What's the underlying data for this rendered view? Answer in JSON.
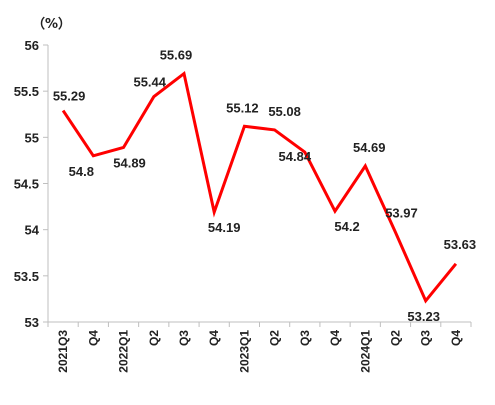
{
  "chart_data": {
    "type": "line",
    "title": "",
    "xlabel": "",
    "ylabel": "",
    "unit": "（%）",
    "categories": [
      "2021Q3",
      "Q4",
      "2022Q1",
      "Q2",
      "Q3",
      "Q4",
      "2023Q1",
      "Q2",
      "Q3",
      "Q4",
      "2024Q1",
      "Q2",
      "Q3",
      "Q4"
    ],
    "series": [
      {
        "values": [
          55.29,
          54.8,
          54.89,
          55.44,
          55.69,
          54.19,
          55.12,
          55.08,
          54.84,
          54.2,
          54.69,
          53.97,
          53.23,
          53.63
        ],
        "labels": [
          "55.29",
          "54.8",
          "54.89",
          "55.44",
          "55.69",
          "54.19",
          "55.12",
          "55.08",
          "54.84",
          "54.2",
          "54.69",
          "53.97",
          "53.23",
          "53.63"
        ],
        "color": "#ff0000"
      }
    ],
    "ylim": [
      53,
      56
    ],
    "yticks": [
      53,
      53.5,
      54,
      54.5,
      55,
      55.5,
      56
    ],
    "ytick_labels": [
      "53",
      "53.5",
      "54",
      "54.5",
      "55",
      "55.5",
      "56"
    ],
    "grid": false,
    "axis_color": "#bfbfbf",
    "label_color": "#222222"
  }
}
